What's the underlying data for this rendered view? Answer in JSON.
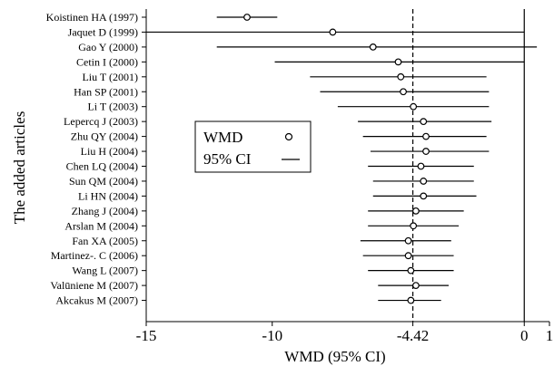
{
  "chart_data": {
    "type": "forest",
    "title": "",
    "xlabel": "WMD (95% CI)",
    "ylabel": "The added articles",
    "xlim": [
      -15,
      1
    ],
    "x_ticks": [
      {
        "value": -15,
        "label": "-15"
      },
      {
        "value": -10,
        "label": "-10"
      },
      {
        "value": -4.42,
        "label": "-4.42"
      },
      {
        "value": 0,
        "label": "0"
      },
      {
        "value": 1,
        "label": "1"
      }
    ],
    "reference_line": 0,
    "pooled_estimate_line": -4.42,
    "legend": {
      "placement": "center-left",
      "entries": [
        {
          "label": "WMD",
          "symbol": "circle"
        },
        {
          "label": "95% CI",
          "symbol": "line"
        }
      ]
    },
    "studies": [
      {
        "label": "Koistinen HA (1997)",
        "wmd": -11.0,
        "ci_low": -12.2,
        "ci_high": -9.8
      },
      {
        "label": "Jaquet D (1999)",
        "wmd": -7.6,
        "ci_low": -15.0,
        "ci_high": 0.0
      },
      {
        "label": "Gao Y (2000)",
        "wmd": -6.0,
        "ci_low": -12.2,
        "ci_high": 0.5
      },
      {
        "label": "Cetin I (2000)",
        "wmd": -5.0,
        "ci_low": -9.9,
        "ci_high": 0.0
      },
      {
        "label": "Liu T (2001)",
        "wmd": -4.9,
        "ci_low": -8.5,
        "ci_high": -1.5
      },
      {
        "label": "Han SP (2001)",
        "wmd": -4.8,
        "ci_low": -8.1,
        "ci_high": -1.4
      },
      {
        "label": "Li T (2003)",
        "wmd": -4.4,
        "ci_low": -7.4,
        "ci_high": -1.4
      },
      {
        "label": "Lepercq J (2003)",
        "wmd": -4.0,
        "ci_low": -6.6,
        "ci_high": -1.3
      },
      {
        "label": "Zhu QY (2004)",
        "wmd": -3.9,
        "ci_low": -6.4,
        "ci_high": -1.5
      },
      {
        "label": "Liu H (2004)",
        "wmd": -3.9,
        "ci_low": -6.1,
        "ci_high": -1.4
      },
      {
        "label": "Chen LQ (2004)",
        "wmd": -4.1,
        "ci_low": -6.2,
        "ci_high": -2.0
      },
      {
        "label": "Sun QM (2004)",
        "wmd": -4.0,
        "ci_low": -6.0,
        "ci_high": -2.0
      },
      {
        "label": "Li HN (2004)",
        "wmd": -4.0,
        "ci_low": -6.0,
        "ci_high": -1.9
      },
      {
        "label": "Zhang J (2004)",
        "wmd": -4.3,
        "ci_low": -6.2,
        "ci_high": -2.4
      },
      {
        "label": "Arslan M (2004)",
        "wmd": -4.4,
        "ci_low": -6.2,
        "ci_high": -2.6
      },
      {
        "label": "Fan XA (2005)",
        "wmd": -4.6,
        "ci_low": -6.5,
        "ci_high": -2.9
      },
      {
        "label": "Martinez-. C (2006)",
        "wmd": -4.6,
        "ci_low": -6.4,
        "ci_high": -2.8
      },
      {
        "label": "Wang L (2007)",
        "wmd": -4.5,
        "ci_low": -6.2,
        "ci_high": -2.8
      },
      {
        "label": "Valūniene M (2007)",
        "wmd": -4.3,
        "ci_low": -5.8,
        "ci_high": -3.0
      },
      {
        "label": "Akcakus M (2007)",
        "wmd": -4.5,
        "ci_low": -5.8,
        "ci_high": -3.3
      }
    ]
  }
}
